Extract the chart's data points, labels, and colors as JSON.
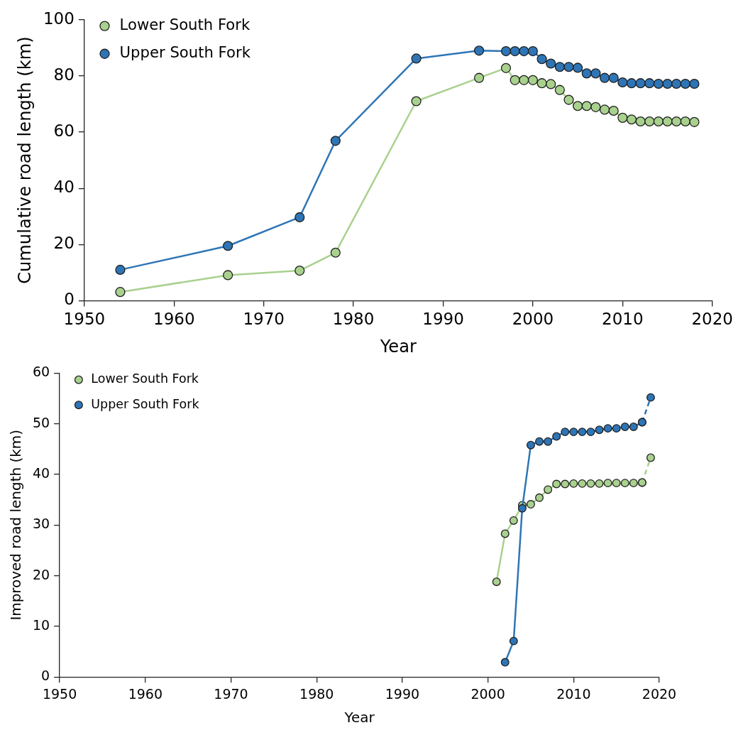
{
  "chart_data": [
    {
      "type": "line",
      "xlabel": "Year",
      "ylabel": "Cumulative road length (km)",
      "xlim": [
        1950,
        2020
      ],
      "xticks": [
        1950,
        1960,
        1970,
        1980,
        1990,
        2000,
        2010,
        2020
      ],
      "ylim": [
        0,
        100
      ],
      "yticks": [
        0,
        20,
        40,
        60,
        80,
        100
      ],
      "grid": false,
      "legend": "top left",
      "marker": "circle",
      "line_style": "solid",
      "series": [
        {
          "name": "Lower South Fork",
          "color": "#a9d18e",
          "x": [
            1954,
            1966,
            1974,
            1978,
            1987,
            1994,
            1997,
            1998,
            1999,
            2000,
            2001,
            2002,
            2003,
            2004,
            2005,
            2006,
            2007,
            2008,
            2009,
            2010,
            2011,
            2012,
            2013,
            2014,
            2015,
            2016,
            2017,
            2018
          ],
          "values": [
            3.1,
            9.1,
            10.7,
            17.1,
            71.0,
            79.3,
            82.8,
            78.5,
            78.5,
            78.5,
            77.4,
            77.1,
            75.0,
            71.5,
            69.3,
            69.3,
            68.9,
            68.0,
            67.6,
            65.1,
            64.5,
            63.8,
            63.8,
            63.8,
            63.8,
            63.8,
            63.8,
            63.6
          ]
        },
        {
          "name": "Upper South Fork",
          "color": "#2e75b6",
          "x": [
            1954,
            1966,
            1974,
            1978,
            1987,
            1994,
            1997,
            1998,
            1999,
            2000,
            2001,
            2002,
            2003,
            2004,
            2005,
            2006,
            2007,
            2008,
            2009,
            2010,
            2011,
            2012,
            2013,
            2014,
            2015,
            2016,
            2017,
            2018
          ],
          "values": [
            11.0,
            19.5,
            29.7,
            56.9,
            86.2,
            89.0,
            88.8,
            88.8,
            88.8,
            88.8,
            86.0,
            84.4,
            83.2,
            83.2,
            82.9,
            80.9,
            80.9,
            79.3,
            79.3,
            77.7,
            77.4,
            77.4,
            77.4,
            77.2,
            77.2,
            77.2,
            77.2,
            77.2
          ]
        }
      ]
    },
    {
      "type": "line",
      "xlabel": "Year",
      "ylabel": "Improved road length (km)",
      "xlim": [
        1950,
        2020
      ],
      "xticks": [
        1950,
        1960,
        1970,
        1980,
        1990,
        2000,
        2010,
        2020
      ],
      "ylim": [
        0,
        60
      ],
      "yticks": [
        0,
        10,
        20,
        30,
        40,
        50,
        60
      ],
      "grid": false,
      "legend": "top left",
      "marker": "circle",
      "line_style": "solid",
      "series": [
        {
          "name": "Lower South Fork",
          "color": "#a9d18e",
          "x": [
            2001,
            2002,
            2003,
            2004,
            2005,
            2006,
            2007,
            2008,
            2009,
            2010,
            2011,
            2012,
            2013,
            2014,
            2015,
            2016,
            2017,
            2018
          ],
          "values": [
            18.8,
            28.3,
            30.9,
            33.9,
            34.1,
            35.4,
            37.0,
            38.1,
            38.1,
            38.2,
            38.2,
            38.2,
            38.2,
            38.3,
            38.3,
            38.3,
            38.3,
            38.4
          ]
        },
        {
          "name": "Upper South Fork",
          "color": "#2e75b6",
          "x": [
            2002,
            2003,
            2004,
            2005,
            2006,
            2007,
            2008,
            2009,
            2010,
            2011,
            2012,
            2013,
            2014,
            2015,
            2016,
            2017,
            2018
          ],
          "values": [
            2.9,
            7.1,
            33.3,
            45.8,
            46.5,
            46.5,
            47.5,
            48.4,
            48.4,
            48.4,
            48.4,
            48.8,
            49.1,
            49.1,
            49.4,
            49.4,
            50.3
          ]
        },
        {
          "color": "#a9d18e",
          "line_style": "dashed",
          "x": [
            2018,
            2019
          ],
          "values": [
            38.4,
            43.3
          ]
        },
        {
          "color": "#2e75b6",
          "line_style": "dashed",
          "x": [
            2018,
            2019
          ],
          "values": [
            50.3,
            55.2
          ]
        }
      ]
    }
  ]
}
